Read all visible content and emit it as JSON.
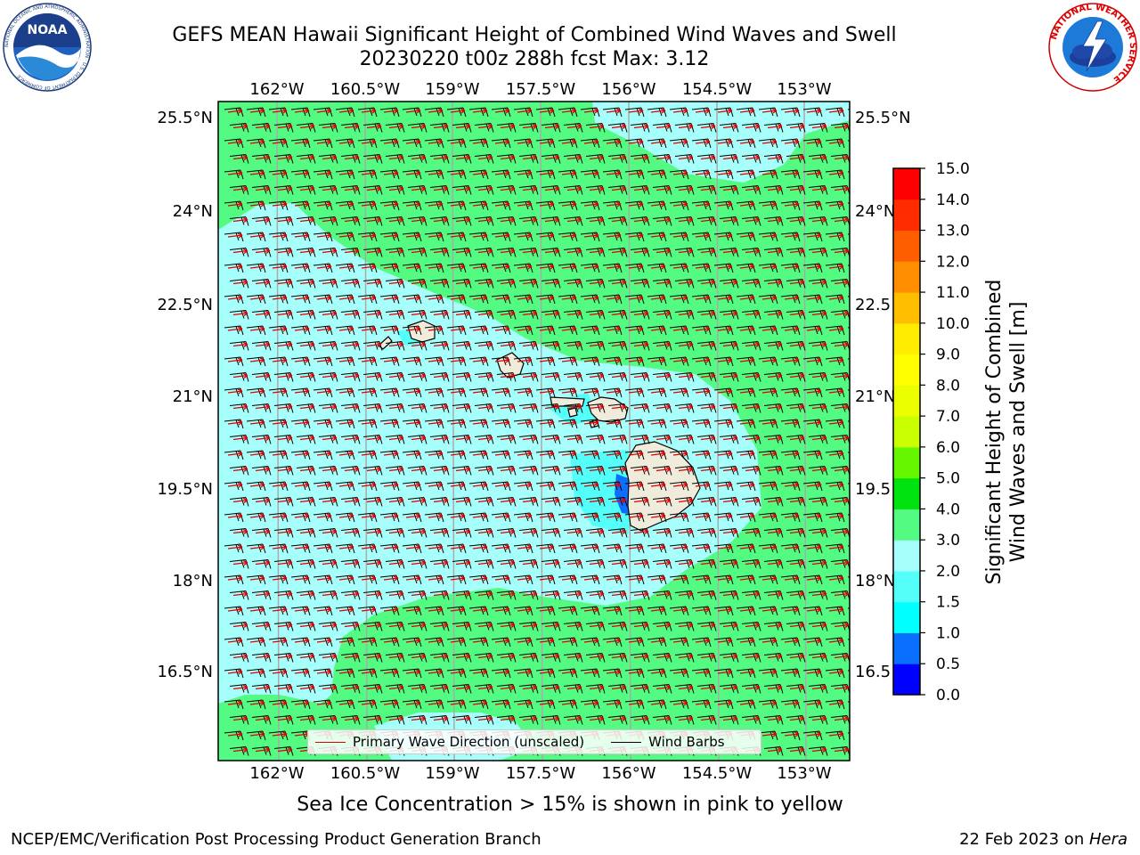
{
  "header": {
    "title_line1": "GEFS MEAN Hawaii Significant Height of Combined Wind Waves and Swell",
    "title_line2": "20230220 t00z 288h fcst   Max: 3.12"
  },
  "logos": [
    {
      "name": "noaa-logo",
      "text": "NOAA",
      "ring_text": "NATIONAL OCEANIC AND ATMOSPHERIC ADMINISTRATION · U.S. DEPARTMENT OF COMMERCE"
    },
    {
      "name": "nws-logo",
      "ring_text": "NATIONAL WEATHER SERVICE"
    }
  ],
  "map": {
    "lon_labels": [
      "162°W",
      "160.5°W",
      "159°W",
      "157.5°W",
      "156°W",
      "154.5°W",
      "153°W"
    ],
    "lat_labels_left": [
      "25.5°N",
      "24°N",
      "22.5°N",
      "21°N",
      "19.5°N",
      "18°N",
      "16.5°N"
    ],
    "lat_labels_right": [
      "25.5°N",
      "24°N",
      "22.5",
      "21°N",
      "19.5",
      "18°N",
      "16.5"
    ],
    "legend": {
      "wave_label": "Primary Wave Direction (unscaled)",
      "barb_label": "Wind Barbs"
    },
    "colors": {
      "ocean_base": "#54fb82",
      "ocean_light": "#a7fffc",
      "ocean_mid": "#55fff9",
      "ocean_deep": "#0a6eff",
      "land": "#f0ecdc",
      "wave_arrow": "#e00000",
      "barb": "#000000"
    }
  },
  "colorbar": {
    "title_line1": "Significant Height of Combined",
    "title_line2": "Wind Waves and Swell [m]",
    "ticks": [
      "0.0",
      "0.5",
      "1.0",
      "1.5",
      "2.0",
      "3.0",
      "4.0",
      "5.0",
      "6.0",
      "7.0",
      "8.0",
      "9.0",
      "10.0",
      "11.0",
      "12.0",
      "13.0",
      "14.0",
      "15.0"
    ],
    "colors": [
      "#0000ff",
      "#0a6eff",
      "#00ffff",
      "#55fff9",
      "#a7fffc",
      "#54fb82",
      "#00e30e",
      "#65f700",
      "#c9ff00",
      "#ecff00",
      "#ffff00",
      "#ffec00",
      "#ffbe00",
      "#ff8d00",
      "#ff5e00",
      "#ff2c00",
      "#ff0000"
    ]
  },
  "footer": {
    "sea_ice_note": "Sea Ice Concentration > 15% is shown in pink to yellow",
    "left": "NCEP/EMC/Verification Post Processing Product Generation Branch",
    "right_prefix": "22 Feb 2023 on ",
    "right_host": "Hera"
  }
}
